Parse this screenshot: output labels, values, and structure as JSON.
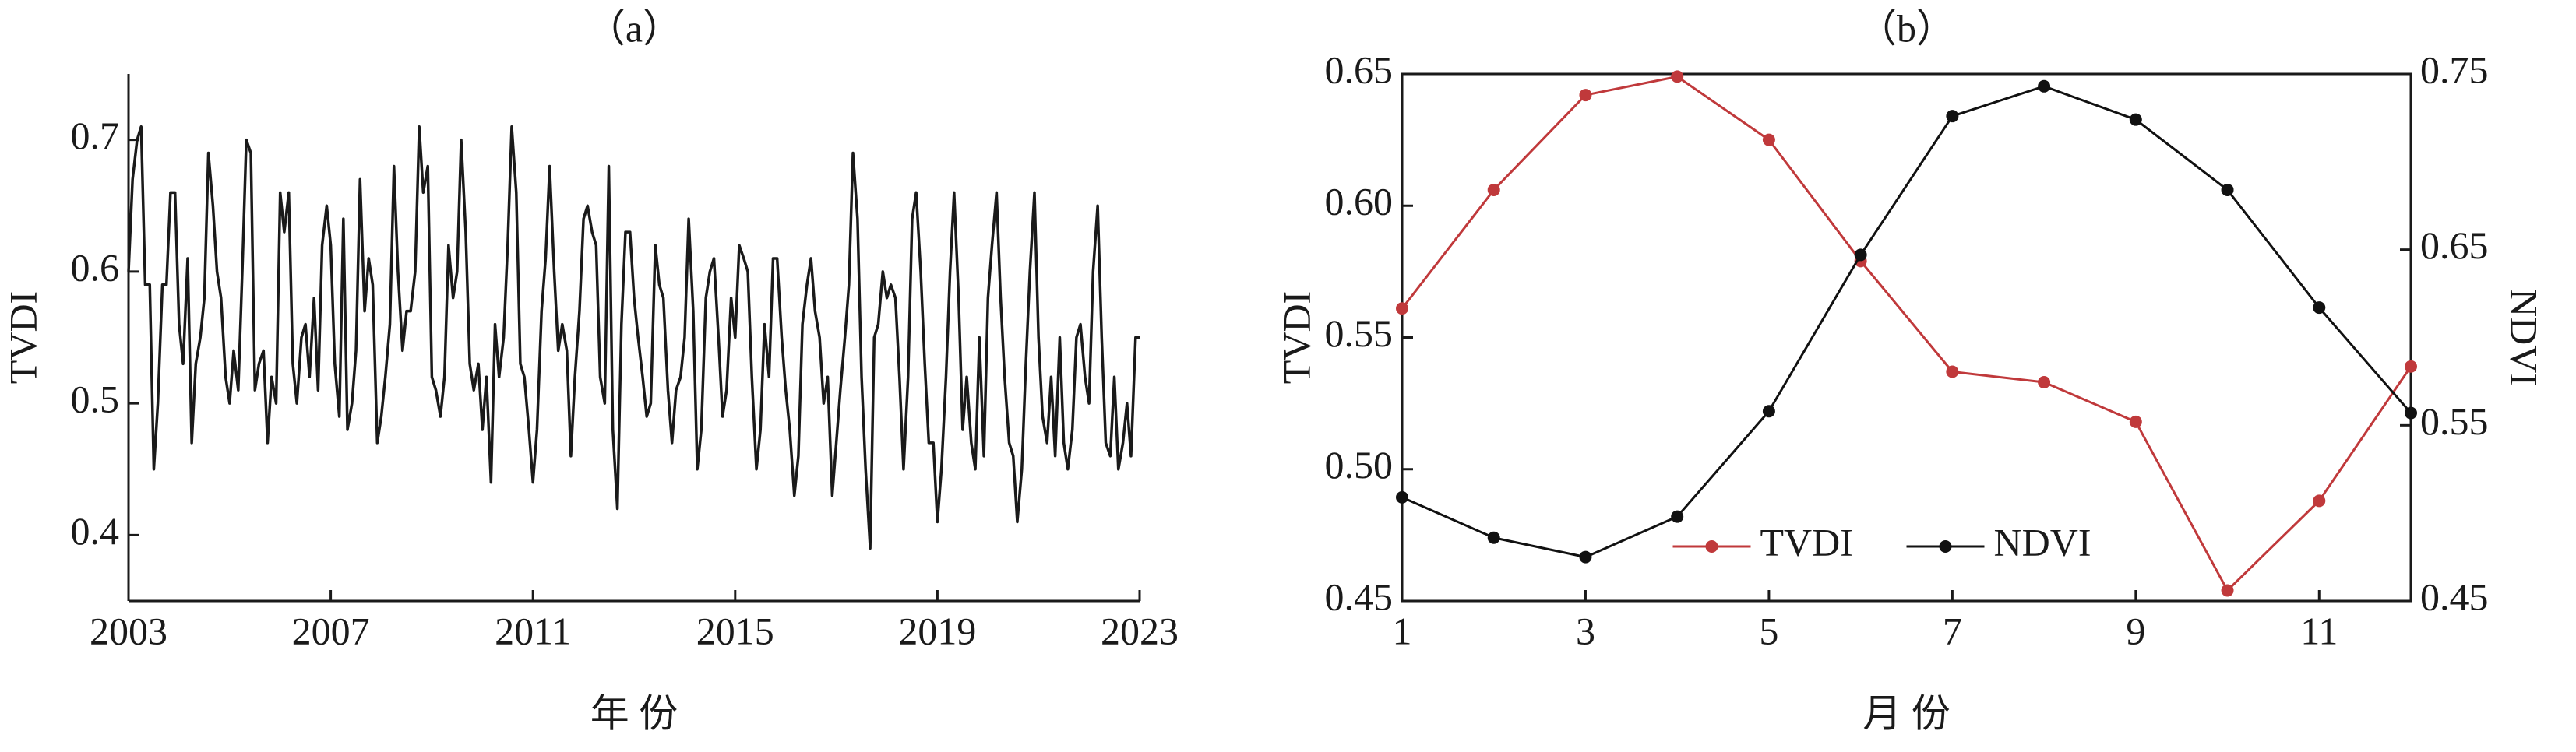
{
  "chart_data": [
    {
      "type": "line",
      "title": "（a）",
      "xlabel": "年 份",
      "ylabel": "TVDI",
      "color": "#1a1a1a",
      "x": [
        2003,
        2003.08,
        2003.17,
        2003.25,
        2003.33,
        2003.42,
        2003.5,
        2003.58,
        2003.67,
        2003.75,
        2003.83,
        2003.92,
        2004,
        2004.08,
        2004.17,
        2004.25,
        2004.33,
        2004.42,
        2004.5,
        2004.58,
        2004.67,
        2004.75,
        2004.83,
        2004.92,
        2005,
        2005.08,
        2005.17,
        2005.25,
        2005.33,
        2005.42,
        2005.5,
        2005.58,
        2005.67,
        2005.75,
        2005.83,
        2005.92,
        2006,
        2006.08,
        2006.17,
        2006.25,
        2006.33,
        2006.42,
        2006.5,
        2006.58,
        2006.67,
        2006.75,
        2006.83,
        2006.92,
        2007,
        2007.08,
        2007.17,
        2007.25,
        2007.33,
        2007.42,
        2007.5,
        2007.58,
        2007.67,
        2007.75,
        2007.83,
        2007.92,
        2008,
        2008.08,
        2008.17,
        2008.25,
        2008.33,
        2008.42,
        2008.5,
        2008.58,
        2008.67,
        2008.75,
        2008.83,
        2008.92,
        2009,
        2009.08,
        2009.17,
        2009.25,
        2009.33,
        2009.42,
        2009.5,
        2009.58,
        2009.67,
        2009.75,
        2009.83,
        2009.92,
        2010,
        2010.08,
        2010.17,
        2010.25,
        2010.33,
        2010.42,
        2010.5,
        2010.58,
        2010.67,
        2010.75,
        2010.83,
        2010.92,
        2011,
        2011.08,
        2011.17,
        2011.25,
        2011.33,
        2011.42,
        2011.5,
        2011.58,
        2011.67,
        2011.75,
        2011.83,
        2011.92,
        2012,
        2012.08,
        2012.17,
        2012.25,
        2012.33,
        2012.42,
        2012.5,
        2012.58,
        2012.67,
        2012.75,
        2012.83,
        2012.92,
        2013,
        2013.08,
        2013.17,
        2013.25,
        2013.33,
        2013.42,
        2013.5,
        2013.58,
        2013.67,
        2013.75,
        2013.83,
        2013.92,
        2014,
        2014.08,
        2014.17,
        2014.25,
        2014.33,
        2014.42,
        2014.5,
        2014.58,
        2014.67,
        2014.75,
        2014.83,
        2014.92,
        2015,
        2015.08,
        2015.17,
        2015.25,
        2015.33,
        2015.42,
        2015.5,
        2015.58,
        2015.67,
        2015.75,
        2015.83,
        2015.92,
        2016,
        2016.08,
        2016.17,
        2016.25,
        2016.33,
        2016.42,
        2016.5,
        2016.58,
        2016.67,
        2016.75,
        2016.83,
        2016.92,
        2017,
        2017.08,
        2017.17,
        2017.25,
        2017.33,
        2017.42,
        2017.5,
        2017.58,
        2017.67,
        2017.75,
        2017.83,
        2017.92,
        2018,
        2018.08,
        2018.17,
        2018.25,
        2018.33,
        2018.42,
        2018.5,
        2018.58,
        2018.67,
        2018.75,
        2018.83,
        2018.92,
        2019,
        2019.08,
        2019.17,
        2019.25,
        2019.33,
        2019.42,
        2019.5,
        2019.58,
        2019.67,
        2019.75,
        2019.83,
        2019.92,
        2020,
        2020.08,
        2020.17,
        2020.25,
        2020.33,
        2020.42,
        2020.5,
        2020.58,
        2020.67,
        2020.75,
        2020.83,
        2020.92,
        2021,
        2021.08,
        2021.17,
        2021.25,
        2021.33,
        2021.42,
        2021.5,
        2021.58,
        2021.67,
        2021.75,
        2021.83,
        2021.92,
        2022,
        2022.08,
        2022.17,
        2022.25,
        2022.33,
        2022.42,
        2022.5,
        2022.58,
        2022.67,
        2022.75,
        2022.83,
        2022.92,
        2023
      ],
      "values": [
        0.6,
        0.67,
        0.7,
        0.71,
        0.59,
        0.59,
        0.45,
        0.5,
        0.59,
        0.59,
        0.66,
        0.66,
        0.56,
        0.53,
        0.61,
        0.47,
        0.53,
        0.55,
        0.58,
        0.69,
        0.65,
        0.6,
        0.58,
        0.52,
        0.5,
        0.54,
        0.51,
        0.6,
        0.7,
        0.69,
        0.51,
        0.53,
        0.54,
        0.47,
        0.52,
        0.5,
        0.66,
        0.63,
        0.66,
        0.53,
        0.5,
        0.55,
        0.56,
        0.52,
        0.58,
        0.51,
        0.62,
        0.65,
        0.62,
        0.53,
        0.49,
        0.64,
        0.48,
        0.5,
        0.54,
        0.67,
        0.57,
        0.61,
        0.59,
        0.47,
        0.49,
        0.52,
        0.56,
        0.68,
        0.6,
        0.54,
        0.57,
        0.57,
        0.6,
        0.71,
        0.66,
        0.68,
        0.52,
        0.51,
        0.49,
        0.52,
        0.62,
        0.58,
        0.6,
        0.7,
        0.63,
        0.53,
        0.51,
        0.53,
        0.48,
        0.52,
        0.44,
        0.56,
        0.52,
        0.55,
        0.62,
        0.71,
        0.66,
        0.53,
        0.52,
        0.48,
        0.44,
        0.48,
        0.57,
        0.61,
        0.68,
        0.6,
        0.54,
        0.56,
        0.54,
        0.46,
        0.52,
        0.57,
        0.64,
        0.65,
        0.63,
        0.62,
        0.52,
        0.5,
        0.68,
        0.48,
        0.42,
        0.56,
        0.63,
        0.63,
        0.58,
        0.55,
        0.52,
        0.49,
        0.5,
        0.62,
        0.59,
        0.58,
        0.51,
        0.47,
        0.51,
        0.52,
        0.55,
        0.64,
        0.57,
        0.45,
        0.48,
        0.58,
        0.6,
        0.61,
        0.55,
        0.49,
        0.51,
        0.58,
        0.55,
        0.62,
        0.61,
        0.6,
        0.52,
        0.45,
        0.48,
        0.56,
        0.52,
        0.61,
        0.61,
        0.55,
        0.51,
        0.48,
        0.43,
        0.46,
        0.56,
        0.59,
        0.61,
        0.57,
        0.55,
        0.5,
        0.52,
        0.43,
        0.47,
        0.51,
        0.55,
        0.59,
        0.69,
        0.64,
        0.52,
        0.45,
        0.39,
        0.55,
        0.56,
        0.6,
        0.58,
        0.59,
        0.58,
        0.52,
        0.45,
        0.52,
        0.64,
        0.66,
        0.6,
        0.53,
        0.47,
        0.47,
        0.41,
        0.45,
        0.52,
        0.6,
        0.66,
        0.58,
        0.48,
        0.52,
        0.47,
        0.45,
        0.55,
        0.46,
        0.58,
        0.62,
        0.66,
        0.58,
        0.52,
        0.47,
        0.46,
        0.41,
        0.45,
        0.53,
        0.6,
        0.66,
        0.55,
        0.49,
        0.47,
        0.52,
        0.46,
        0.55,
        0.47,
        0.45,
        0.48,
        0.55,
        0.56,
        0.52,
        0.5,
        0.6,
        0.65,
        0.55,
        0.47,
        0.46,
        0.52,
        0.45,
        0.47,
        0.5,
        0.46,
        0.55,
        0.55
      ],
      "xlim": [
        2003,
        2023
      ],
      "xticks": [
        2003,
        2007,
        2011,
        2015,
        2019,
        2023
      ],
      "ylim": [
        0.35,
        0.75
      ],
      "yticks": [
        0.4,
        0.5,
        0.6,
        0.7
      ]
    },
    {
      "type": "line",
      "title": "（b）",
      "xlabel": "月 份",
      "ylabel": "TVDI",
      "y2label": "NDVI",
      "x": [
        1,
        2,
        3,
        4,
        5,
        6,
        7,
        8,
        9,
        10,
        11,
        12
      ],
      "series": [
        {
          "name": "TVDI",
          "color": "#c0393b",
          "values": [
            0.561,
            0.606,
            0.642,
            0.649,
            0.625,
            0.579,
            0.537,
            0.533,
            0.518,
            0.454,
            0.488,
            0.539
          ]
        },
        {
          "name": "NDVI",
          "color": "#111111",
          "axis": "y2",
          "values": [
            0.509,
            0.486,
            0.475,
            0.498,
            0.558,
            0.647,
            0.726,
            0.743,
            0.724,
            0.684,
            0.617,
            0.557
          ]
        }
      ],
      "xlim": [
        1,
        12
      ],
      "xticks": [
        1,
        3,
        5,
        7,
        9,
        11
      ],
      "ylim": [
        0.45,
        0.65
      ],
      "yticks": [
        0.45,
        {
          "value": 0.5,
          "label": "0.50"
        },
        0.55,
        {
          "value": 0.6,
          "label": "0.60"
        },
        0.65
      ],
      "y2lim": [
        0.45,
        0.75
      ],
      "y2ticks": [
        0.45,
        0.55,
        0.65,
        0.75
      ],
      "markers": true,
      "legend": "lower center"
    }
  ]
}
